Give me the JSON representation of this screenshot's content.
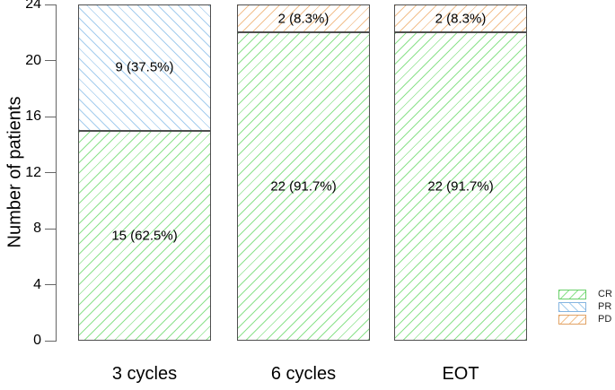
{
  "chart_data": {
    "type": "bar",
    "stacked": true,
    "title": "",
    "ylabel": "Number of patients",
    "xlabel": "",
    "ylim": [
      0,
      24
    ],
    "yticks": [
      0,
      4,
      8,
      12,
      16,
      20,
      24
    ],
    "grid": false,
    "categories": [
      "3 cycles",
      "6 cycles",
      "EOT"
    ],
    "bar_totals": [
      24,
      24,
      24
    ],
    "series": [
      {
        "name": "CR",
        "values": [
          15,
          22,
          22
        ],
        "labels": [
          "15 (62.5%)",
          "22 (91.7%)",
          "22 (91.7%)"
        ],
        "hatch": "/",
        "color": "#8ce28c",
        "border_color": "#6ad06a"
      },
      {
        "name": "PR",
        "values": [
          9,
          0,
          0
        ],
        "labels": [
          "9 (37.5%)",
          "",
          ""
        ],
        "hatch": "\\",
        "color": "#a5cdee",
        "border_color": "#84b4e0"
      },
      {
        "name": "PD",
        "values": [
          0,
          2,
          2
        ],
        "labels": [
          "",
          "2 (8.3%)",
          "2 (8.3%)"
        ],
        "hatch": "/",
        "color": "#f2c08e",
        "border_color": "#e1a366"
      }
    ],
    "legend": {
      "position": "right",
      "entries": [
        "CR",
        "PR",
        "PD"
      ]
    }
  }
}
